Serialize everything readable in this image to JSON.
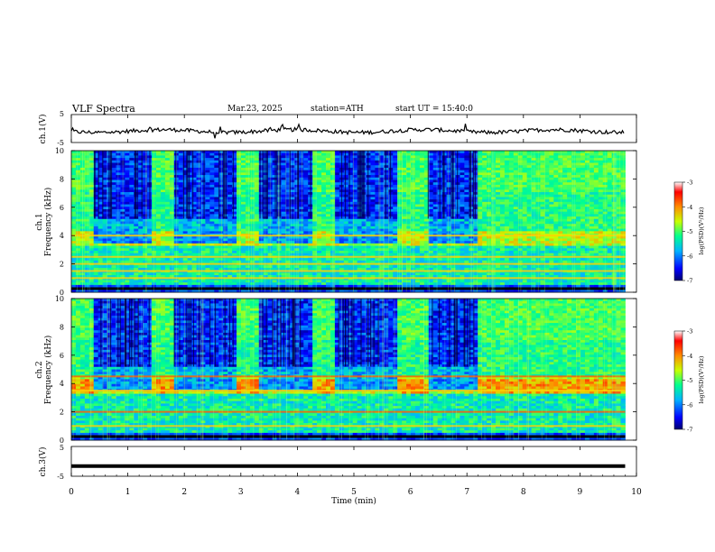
{
  "header": {
    "title": "VLF Spectra",
    "date": "Mar.23, 2025",
    "station": "station=ATH",
    "start": "start UT = 15:40:0"
  },
  "chart_data": [
    {
      "type": "line",
      "name": "ch1-waveform",
      "ylabel": "ch.1(V)",
      "yticks": [
        "5",
        "-5"
      ],
      "ylim": [
        -5,
        5
      ],
      "xlim": [
        0,
        10
      ]
    },
    {
      "type": "heatmap",
      "name": "ch1-spectrogram",
      "ylabel": "ch.1",
      "ylabel2": "Frequency (kHz)",
      "yticks": [
        0,
        2,
        4,
        6,
        8,
        10
      ],
      "ylim": [
        0,
        10
      ],
      "xlim": [
        0,
        10
      ],
      "data_end_min": 9.8,
      "colorbar": {
        "label": "log(PSD)(V²/Hz)",
        "ticks": [
          -3,
          -4,
          -5,
          -6,
          -7
        ],
        "range": [
          -7,
          -3
        ]
      },
      "quiet_intervals_min": [
        [
          0.4,
          1.4
        ],
        [
          1.8,
          2.9
        ],
        [
          3.3,
          4.3
        ],
        [
          4.7,
          5.8
        ],
        [
          6.3,
          7.2
        ]
      ],
      "noisy_intervals_min": [
        [
          1.4,
          1.8
        ],
        [
          2.9,
          3.3
        ],
        [
          4.3,
          4.7
        ],
        [
          5.8,
          6.3
        ],
        [
          7.2,
          9.8
        ]
      ],
      "bands_khz": [
        1,
        1.5,
        2,
        2.5,
        4
      ]
    },
    {
      "type": "heatmap",
      "name": "ch2-spectrogram",
      "ylabel": "ch.2",
      "ylabel2": "Frequency (kHz)",
      "yticks": [
        0,
        2,
        4,
        6,
        8,
        10
      ],
      "ylim": [
        0,
        10
      ],
      "xlim": [
        0,
        10
      ],
      "data_end_min": 9.8,
      "colorbar": {
        "label": "log(PSD)(V²/Hz)",
        "ticks": [
          -3,
          -4,
          -5,
          -6,
          -7
        ],
        "range": [
          -7,
          -3
        ]
      },
      "quiet_intervals_min": [
        [
          0.4,
          1.4
        ],
        [
          1.8,
          2.9
        ],
        [
          3.3,
          4.3
        ],
        [
          4.7,
          5.8
        ],
        [
          6.3,
          7.2
        ]
      ],
      "noisy_intervals_min": [
        [
          1.4,
          1.8
        ],
        [
          2.9,
          3.3
        ],
        [
          4.3,
          4.7
        ],
        [
          5.8,
          6.3
        ],
        [
          7.2,
          9.8
        ]
      ],
      "bands_khz": [
        1,
        2,
        3.5,
        4.5
      ]
    },
    {
      "type": "line",
      "name": "ch3-waveform",
      "ylabel": "ch.3(V)",
      "yticks": [
        "5",
        "-5"
      ],
      "ylim": [
        -5,
        5
      ],
      "xlim": [
        0,
        10
      ],
      "xlabel": "Time (min)",
      "xticks": [
        0,
        1,
        2,
        3,
        4,
        5,
        6,
        7,
        8,
        9,
        10
      ],
      "level_v": -1.6
    }
  ],
  "colors": {
    "waveform": "#000000",
    "axis": "#000000",
    "background": "#ffffff"
  }
}
